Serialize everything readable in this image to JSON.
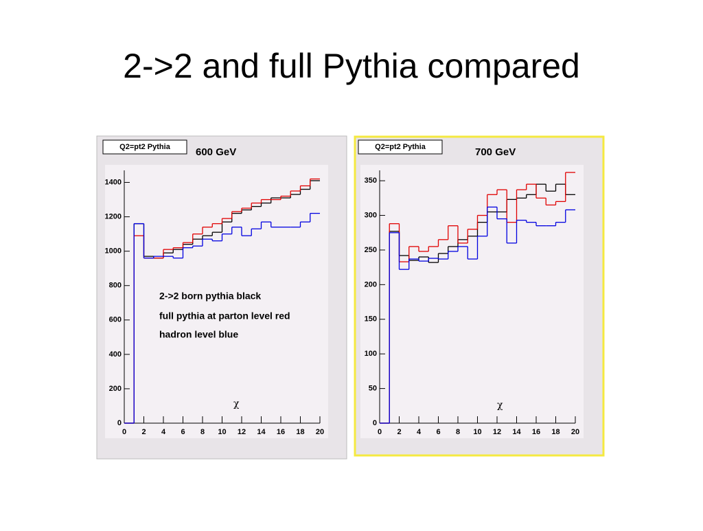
{
  "title": "2->2 and full Pythia compared",
  "chart_data": [
    {
      "type": "histogram",
      "panel_label": "Q2=pt2 Pythia",
      "title": "600 GeV",
      "xlabel": "χ",
      "annotations": [
        "2->2 born pythia black",
        "full pythia at parton level red",
        "hadron level blue"
      ],
      "bins": [
        0,
        1,
        2,
        3,
        4,
        5,
        6,
        7,
        8,
        9,
        10,
        11,
        12,
        13,
        14,
        15,
        16,
        17,
        18,
        19,
        20
      ],
      "series": [
        {
          "color": "#000000",
          "values": [
            0,
            1160,
            970,
            960,
            990,
            1010,
            1040,
            1070,
            1090,
            1110,
            1170,
            1220,
            1240,
            1260,
            1280,
            1310,
            1310,
            1330,
            1360,
            1410
          ]
        },
        {
          "color": "#e00000",
          "values": [
            0,
            1090,
            960,
            960,
            1010,
            1020,
            1050,
            1100,
            1140,
            1160,
            1190,
            1230,
            1250,
            1280,
            1300,
            1300,
            1320,
            1350,
            1380,
            1420
          ]
        },
        {
          "color": "#0000e0",
          "values": [
            0,
            1160,
            960,
            970,
            970,
            960,
            1020,
            1030,
            1070,
            1060,
            1100,
            1140,
            1090,
            1130,
            1170,
            1140,
            1140,
            1140,
            1170,
            1220
          ]
        }
      ],
      "xlim": [
        0,
        20
      ],
      "xticks": [
        0,
        2,
        4,
        6,
        8,
        10,
        12,
        14,
        16,
        18,
        20
      ],
      "ylim": [
        0,
        1470
      ],
      "yticks": [
        0,
        200,
        400,
        600,
        800,
        1000,
        1200,
        1400
      ]
    },
    {
      "type": "histogram",
      "panel_label": "Q2=pt2 Pythia",
      "title": "700 GeV",
      "xlabel": "χ",
      "annotations": [],
      "bins": [
        0,
        1,
        2,
        3,
        4,
        5,
        6,
        7,
        8,
        9,
        10,
        11,
        12,
        13,
        14,
        15,
        16,
        17,
        18,
        19,
        20
      ],
      "series": [
        {
          "color": "#000000",
          "values": [
            0,
            277,
            242,
            235,
            240,
            232,
            245,
            255,
            265,
            270,
            290,
            305,
            305,
            323,
            325,
            330,
            345,
            335,
            345,
            330
          ]
        },
        {
          "color": "#e00000",
          "values": [
            0,
            288,
            233,
            255,
            248,
            255,
            265,
            285,
            260,
            280,
            300,
            330,
            337,
            290,
            337,
            345,
            325,
            315,
            320,
            362
          ]
        },
        {
          "color": "#0000e0",
          "values": [
            0,
            275,
            222,
            237,
            234,
            238,
            237,
            248,
            255,
            237,
            270,
            312,
            295,
            260,
            293,
            290,
            285,
            285,
            290,
            308
          ]
        }
      ],
      "xlim": [
        0,
        20
      ],
      "xticks": [
        0,
        2,
        4,
        6,
        8,
        10,
        12,
        14,
        16,
        18,
        20
      ],
      "ylim": [
        0,
        365
      ],
      "yticks": [
        0,
        50,
        100,
        150,
        200,
        250,
        300,
        350
      ]
    }
  ]
}
